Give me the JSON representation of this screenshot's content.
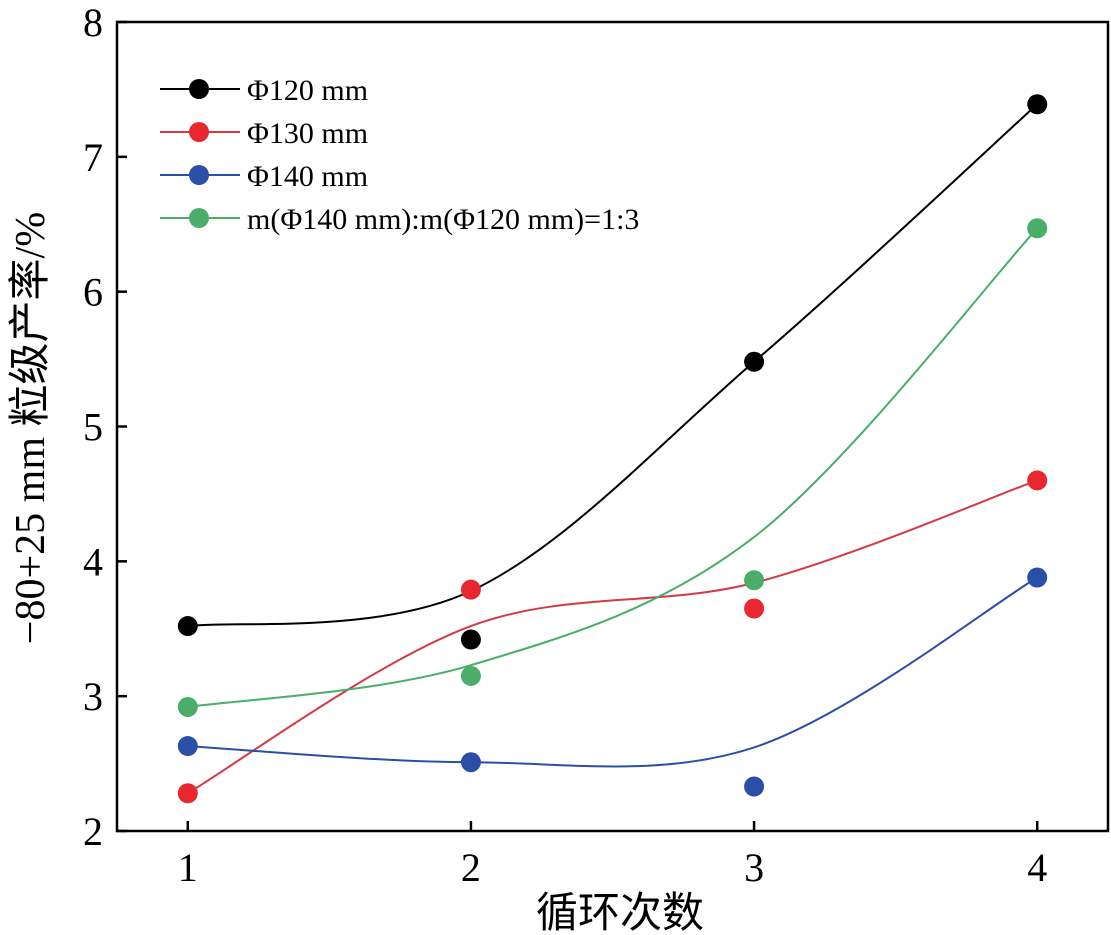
{
  "chart_data": {
    "type": "line",
    "title": "",
    "xlabel": "循环次数",
    "ylabel": "−80+25 mm 粒级产率/%",
    "x": [
      1,
      2,
      3,
      4
    ],
    "xticks": [
      "1",
      "2",
      "3",
      "4"
    ],
    "xlim": [
      0.75,
      4.25
    ],
    "ylim": [
      2,
      8
    ],
    "yticks": [
      "2",
      "3",
      "4",
      "5",
      "6",
      "7",
      "8"
    ],
    "grid": false,
    "legend_position": "top-left",
    "series": [
      {
        "name": "Φ120 mm",
        "color": "#000000",
        "line_color": "#000000",
        "values": [
          3.52,
          3.42,
          5.48,
          7.39
        ],
        "fit_values": [
          3.52,
          3.78,
          5.48,
          7.39
        ]
      },
      {
        "name": "Φ130 mm",
        "color": "#e8282e",
        "line_color": "#d43a45",
        "values": [
          2.28,
          3.79,
          3.65,
          4.6
        ],
        "fit_values": [
          2.28,
          3.52,
          3.84,
          4.6
        ]
      },
      {
        "name": "Φ140 mm",
        "color": "#2b4ea6",
        "line_color": "#2b4ea6",
        "values": [
          2.63,
          2.51,
          2.33,
          3.88
        ],
        "fit_values": [
          2.63,
          2.51,
          2.62,
          3.88
        ]
      },
      {
        "name": "m(Φ140 mm):m(Φ120 mm)=1:3",
        "color": "#4aae6a",
        "line_color": "#4aae6a",
        "values": [
          2.92,
          3.15,
          3.86,
          6.47
        ],
        "fit_values": [
          2.92,
          3.23,
          4.18,
          6.47
        ]
      }
    ]
  }
}
